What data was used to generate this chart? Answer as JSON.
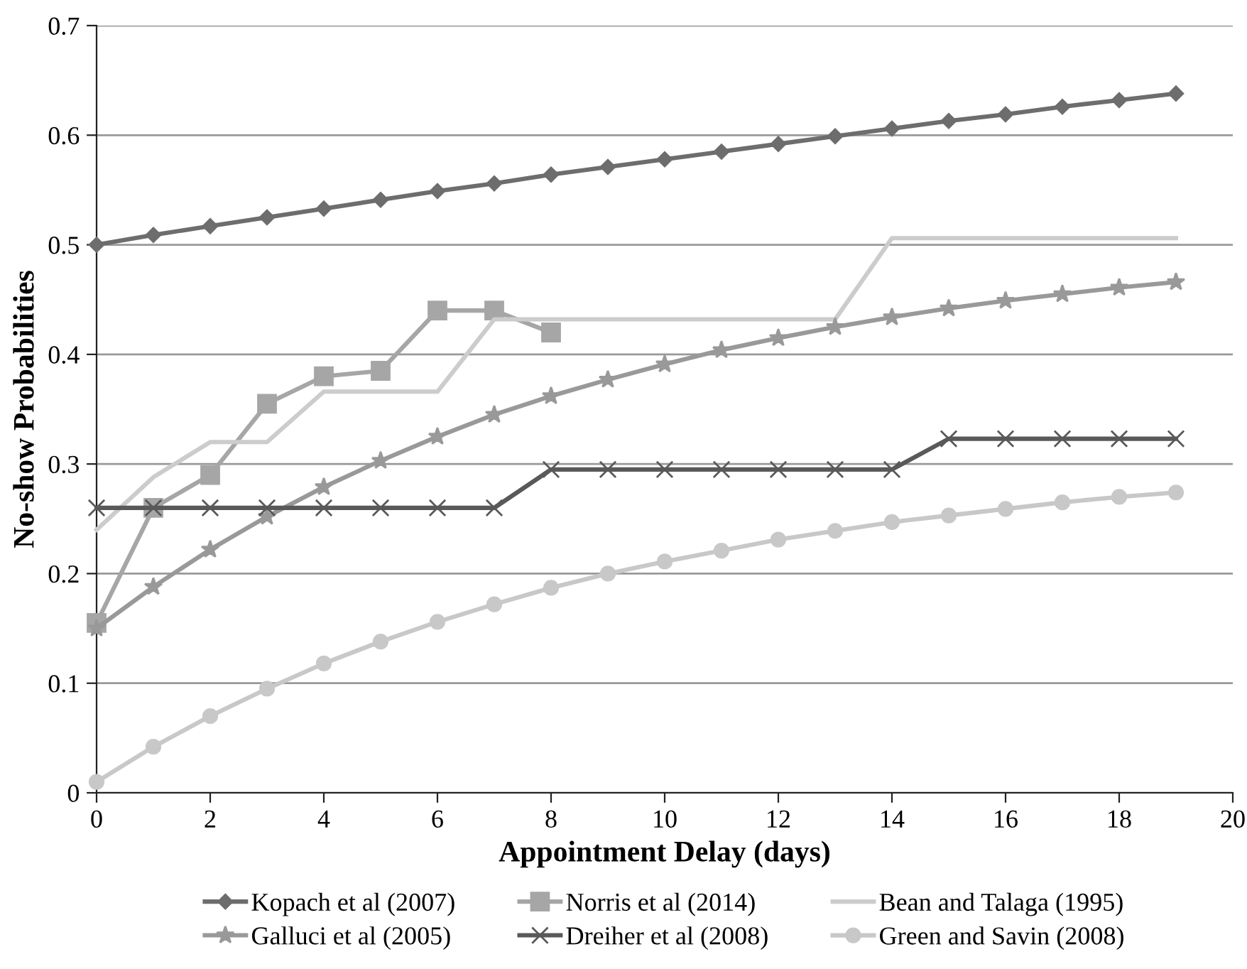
{
  "chart_data": {
    "type": "line",
    "xlabel": "Appointment Delay (days)",
    "ylabel": "No-show Probabilities",
    "xlim": [
      0,
      20
    ],
    "xticks": [
      0,
      2,
      4,
      6,
      8,
      10,
      12,
      14,
      16,
      18,
      20
    ],
    "ylim": [
      0,
      0.7
    ],
    "yticks": [
      0,
      0.1,
      0.2,
      0.3,
      0.4,
      0.5,
      0.6,
      0.7
    ],
    "grid": "y",
    "legend": "bottom",
    "series": [
      {
        "name": "Kopach et al (2007)",
        "color": "#6d6d6d",
        "marker": "diamond",
        "x": [
          0,
          1,
          2,
          3,
          4,
          5,
          6,
          7,
          8,
          9,
          10,
          11,
          12,
          13,
          14,
          15,
          16,
          17,
          18,
          19
        ],
        "values": [
          0.5,
          0.509,
          0.517,
          0.525,
          0.533,
          0.541,
          0.549,
          0.556,
          0.564,
          0.571,
          0.578,
          0.585,
          0.592,
          0.599,
          0.606,
          0.613,
          0.619,
          0.626,
          0.632,
          0.638
        ]
      },
      {
        "name": "Norris et al (2014)",
        "color": "#a6a6a6",
        "marker": "square",
        "x": [
          0,
          1,
          2,
          3,
          4,
          5,
          6,
          7,
          8
        ],
        "values": [
          0.155,
          0.26,
          0.29,
          0.355,
          0.38,
          0.385,
          0.44,
          0.44,
          0.42
        ]
      },
      {
        "name": "Bean and Talaga (1995)",
        "color": "#cccccc",
        "marker": "none",
        "x": [
          0,
          1,
          2,
          3,
          4,
          5,
          6,
          7,
          8,
          9,
          10,
          11,
          12,
          13,
          14,
          15,
          16,
          17,
          18,
          19
        ],
        "values": [
          0.24,
          0.288,
          0.32,
          0.32,
          0.366,
          0.366,
          0.366,
          0.432,
          0.432,
          0.432,
          0.432,
          0.432,
          0.432,
          0.432,
          0.506,
          0.506,
          0.506,
          0.506,
          0.506,
          0.506
        ]
      },
      {
        "name": "Galluci et al (2005)",
        "color": "#999999",
        "marker": "star",
        "x": [
          0,
          1,
          2,
          3,
          4,
          5,
          6,
          7,
          8,
          9,
          10,
          11,
          12,
          13,
          14,
          15,
          16,
          17,
          18,
          19
        ],
        "values": [
          0.15,
          0.188,
          0.222,
          0.252,
          0.279,
          0.303,
          0.325,
          0.345,
          0.362,
          0.377,
          0.391,
          0.404,
          0.415,
          0.425,
          0.434,
          0.442,
          0.449,
          0.455,
          0.461,
          0.466
        ]
      },
      {
        "name": "Dreiher et al (2008)",
        "color": "#595959",
        "marker": "cross",
        "x": [
          0,
          1,
          2,
          3,
          4,
          5,
          6,
          7,
          8,
          9,
          10,
          11,
          12,
          13,
          14,
          15,
          16,
          17,
          18,
          19
        ],
        "values": [
          0.26,
          0.26,
          0.26,
          0.26,
          0.26,
          0.26,
          0.26,
          0.26,
          0.295,
          0.295,
          0.295,
          0.295,
          0.295,
          0.295,
          0.295,
          0.323,
          0.323,
          0.323,
          0.323,
          0.323
        ]
      },
      {
        "name": "Green and Savin (2008)",
        "color": "#c8c8c8",
        "marker": "circle",
        "x": [
          0,
          1,
          2,
          3,
          4,
          5,
          6,
          7,
          8,
          9,
          10,
          11,
          12,
          13,
          14,
          15,
          16,
          17,
          18,
          19
        ],
        "values": [
          0.01,
          0.042,
          0.07,
          0.095,
          0.118,
          0.138,
          0.156,
          0.172,
          0.187,
          0.2,
          0.211,
          0.221,
          0.231,
          0.239,
          0.247,
          0.253,
          0.259,
          0.265,
          0.27,
          0.274
        ]
      }
    ]
  }
}
